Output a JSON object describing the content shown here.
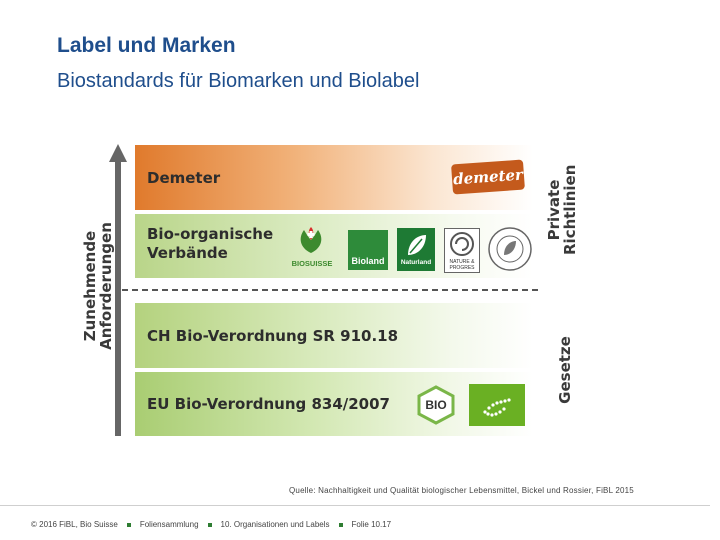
{
  "header": {
    "title": "Label und Marken",
    "subtitle": "Biostandards für Biomarken und Biolabel"
  },
  "diagram": {
    "left_axis_label_line1": "Zunehmende",
    "left_axis_label_line2": "Anforderungen",
    "right_label_top_line1": "Private",
    "right_label_top_line2": "Richtlinien",
    "right_label_bottom": "Gesetze",
    "bands": [
      {
        "line1": "Demeter",
        "line2": ""
      },
      {
        "line1": "Bio-organische",
        "line2": "Verbände"
      },
      {
        "line1": "CH Bio-Verordnung SR 910.18",
        "line2": ""
      },
      {
        "line1": "EU Bio-Verordnung 834/2007",
        "line2": ""
      }
    ],
    "logos": {
      "demeter": "demeter",
      "biosuisse": "BIOSUISSE",
      "bioland": "Bioland",
      "naturland": "Naturland",
      "nature_progres": "NATURE & PROGRES",
      "soil_association": "SOIL ASSOCIATION ORGANIC STANDARD",
      "bio_ch": "BIO",
      "eu_leaf": "EU organic leaf"
    },
    "colors": {
      "demeter_band": "#e07a2c",
      "green_band": "#b4d27e",
      "title": "#1f4e8c"
    }
  },
  "source_note": "Quelle: Nachhaltigkeit und Qualität biologischer Lebensmittel, Bickel und Rossier, FiBL 2015",
  "footer": {
    "copyright": "© 2016 FiBL, Bio Suisse",
    "collection": "Foliensammlung",
    "chapter": "10. Organisationen und Labels",
    "slide": "Folie 10.17"
  }
}
